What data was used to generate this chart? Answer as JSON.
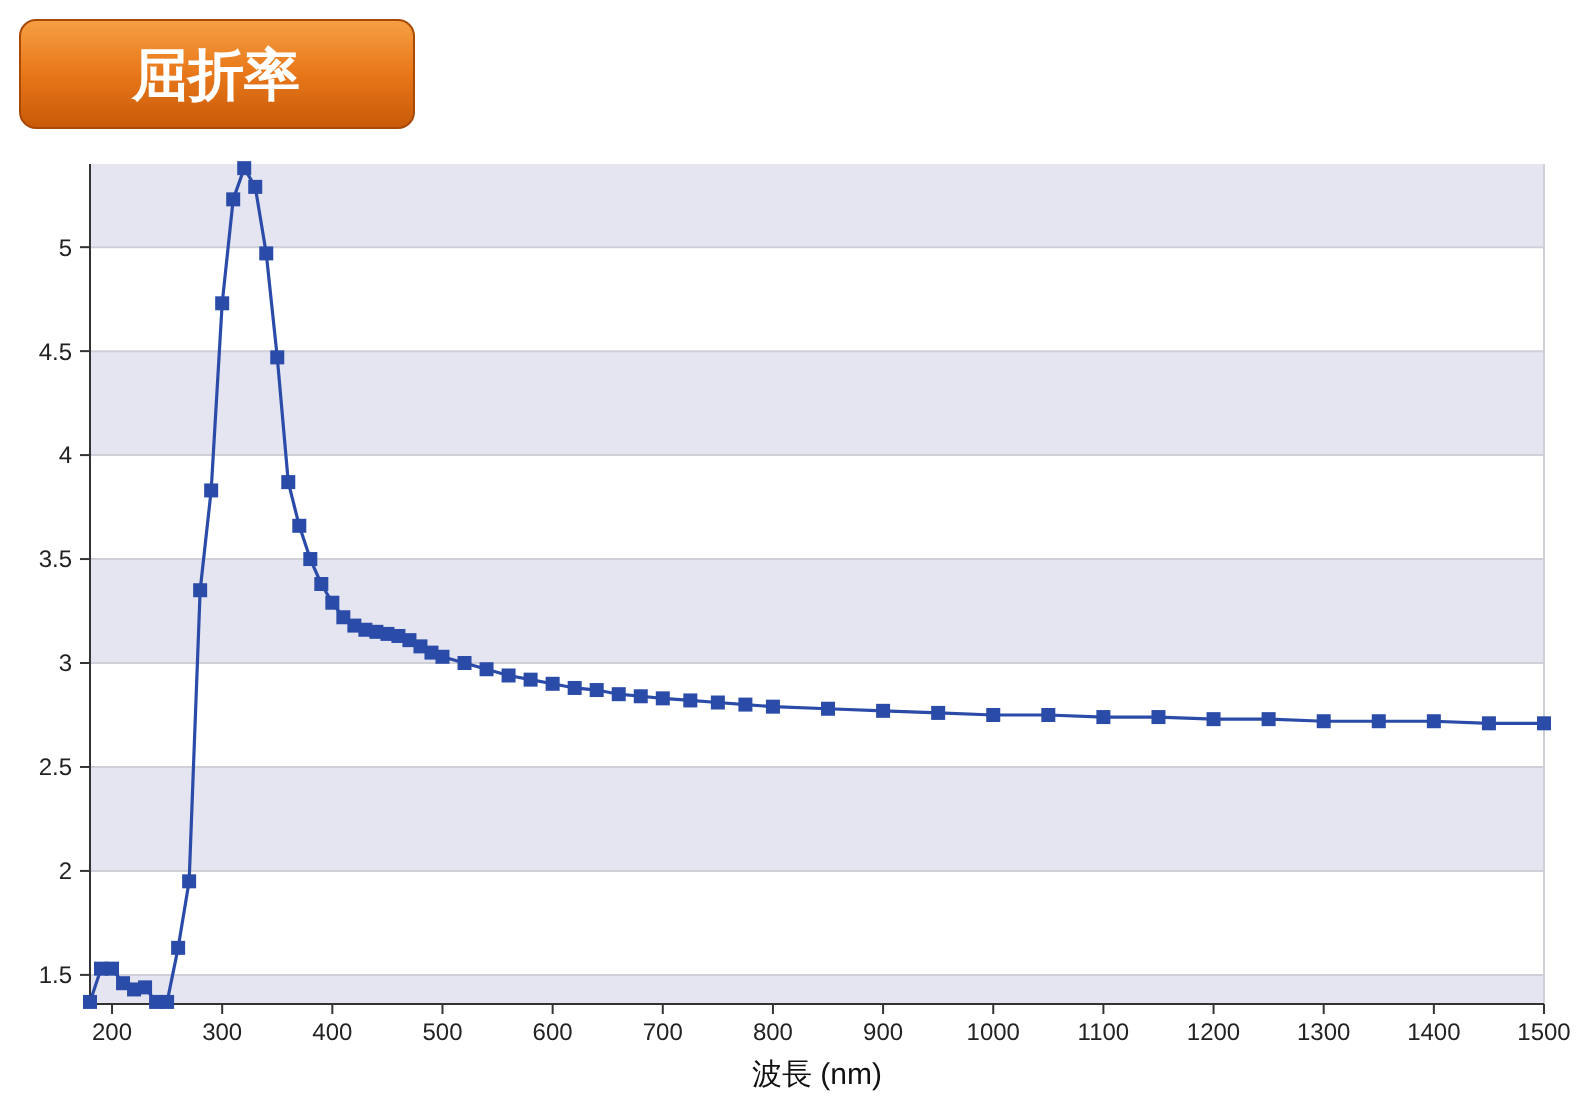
{
  "chart_data": {
    "type": "line",
    "title": "屈折率",
    "xlabel": "波長 (nm)",
    "x": [
      180,
      190,
      200,
      210,
      220,
      230,
      240,
      250,
      260,
      270,
      280,
      290,
      300,
      310,
      320,
      330,
      340,
      350,
      360,
      370,
      380,
      390,
      400,
      410,
      420,
      430,
      440,
      450,
      460,
      470,
      480,
      490,
      500,
      520,
      540,
      560,
      580,
      600,
      620,
      640,
      660,
      680,
      700,
      725,
      750,
      775,
      800,
      850,
      900,
      950,
      1000,
      1050,
      1100,
      1150,
      1200,
      1250,
      1300,
      1350,
      1400,
      1450,
      1500
    ],
    "series": [
      {
        "color": "#2b4ba8",
        "values": [
          1.37,
          1.53,
          1.53,
          1.46,
          1.43,
          1.44,
          1.37,
          1.37,
          1.63,
          1.95,
          3.35,
          3.83,
          4.73,
          5.23,
          5.38,
          5.29,
          4.97,
          4.47,
          3.87,
          3.66,
          3.5,
          3.38,
          3.29,
          3.22,
          3.18,
          3.16,
          3.15,
          3.14,
          3.13,
          3.11,
          3.08,
          3.05,
          3.03,
          3.0,
          2.97,
          2.94,
          2.92,
          2.9,
          2.88,
          2.87,
          2.85,
          2.84,
          2.83,
          2.82,
          2.81,
          2.8,
          2.79,
          2.78,
          2.77,
          2.76,
          2.75,
          2.75,
          2.74,
          2.74,
          2.73,
          2.73,
          2.72,
          2.72,
          2.72,
          2.71,
          2.71
        ]
      }
    ],
    "xlim": [
      180,
      1500
    ],
    "ylim": [
      1.36,
      5.4
    ],
    "xticks": [
      200,
      300,
      400,
      500,
      600,
      700,
      800,
      900,
      1000,
      1100,
      1200,
      1300,
      1400,
      1500
    ],
    "yticks": [
      1.5,
      2,
      2.5,
      3,
      3.5,
      4,
      4.5,
      5
    ],
    "grid": "y",
    "marker": "square",
    "line_style": "solid"
  }
}
